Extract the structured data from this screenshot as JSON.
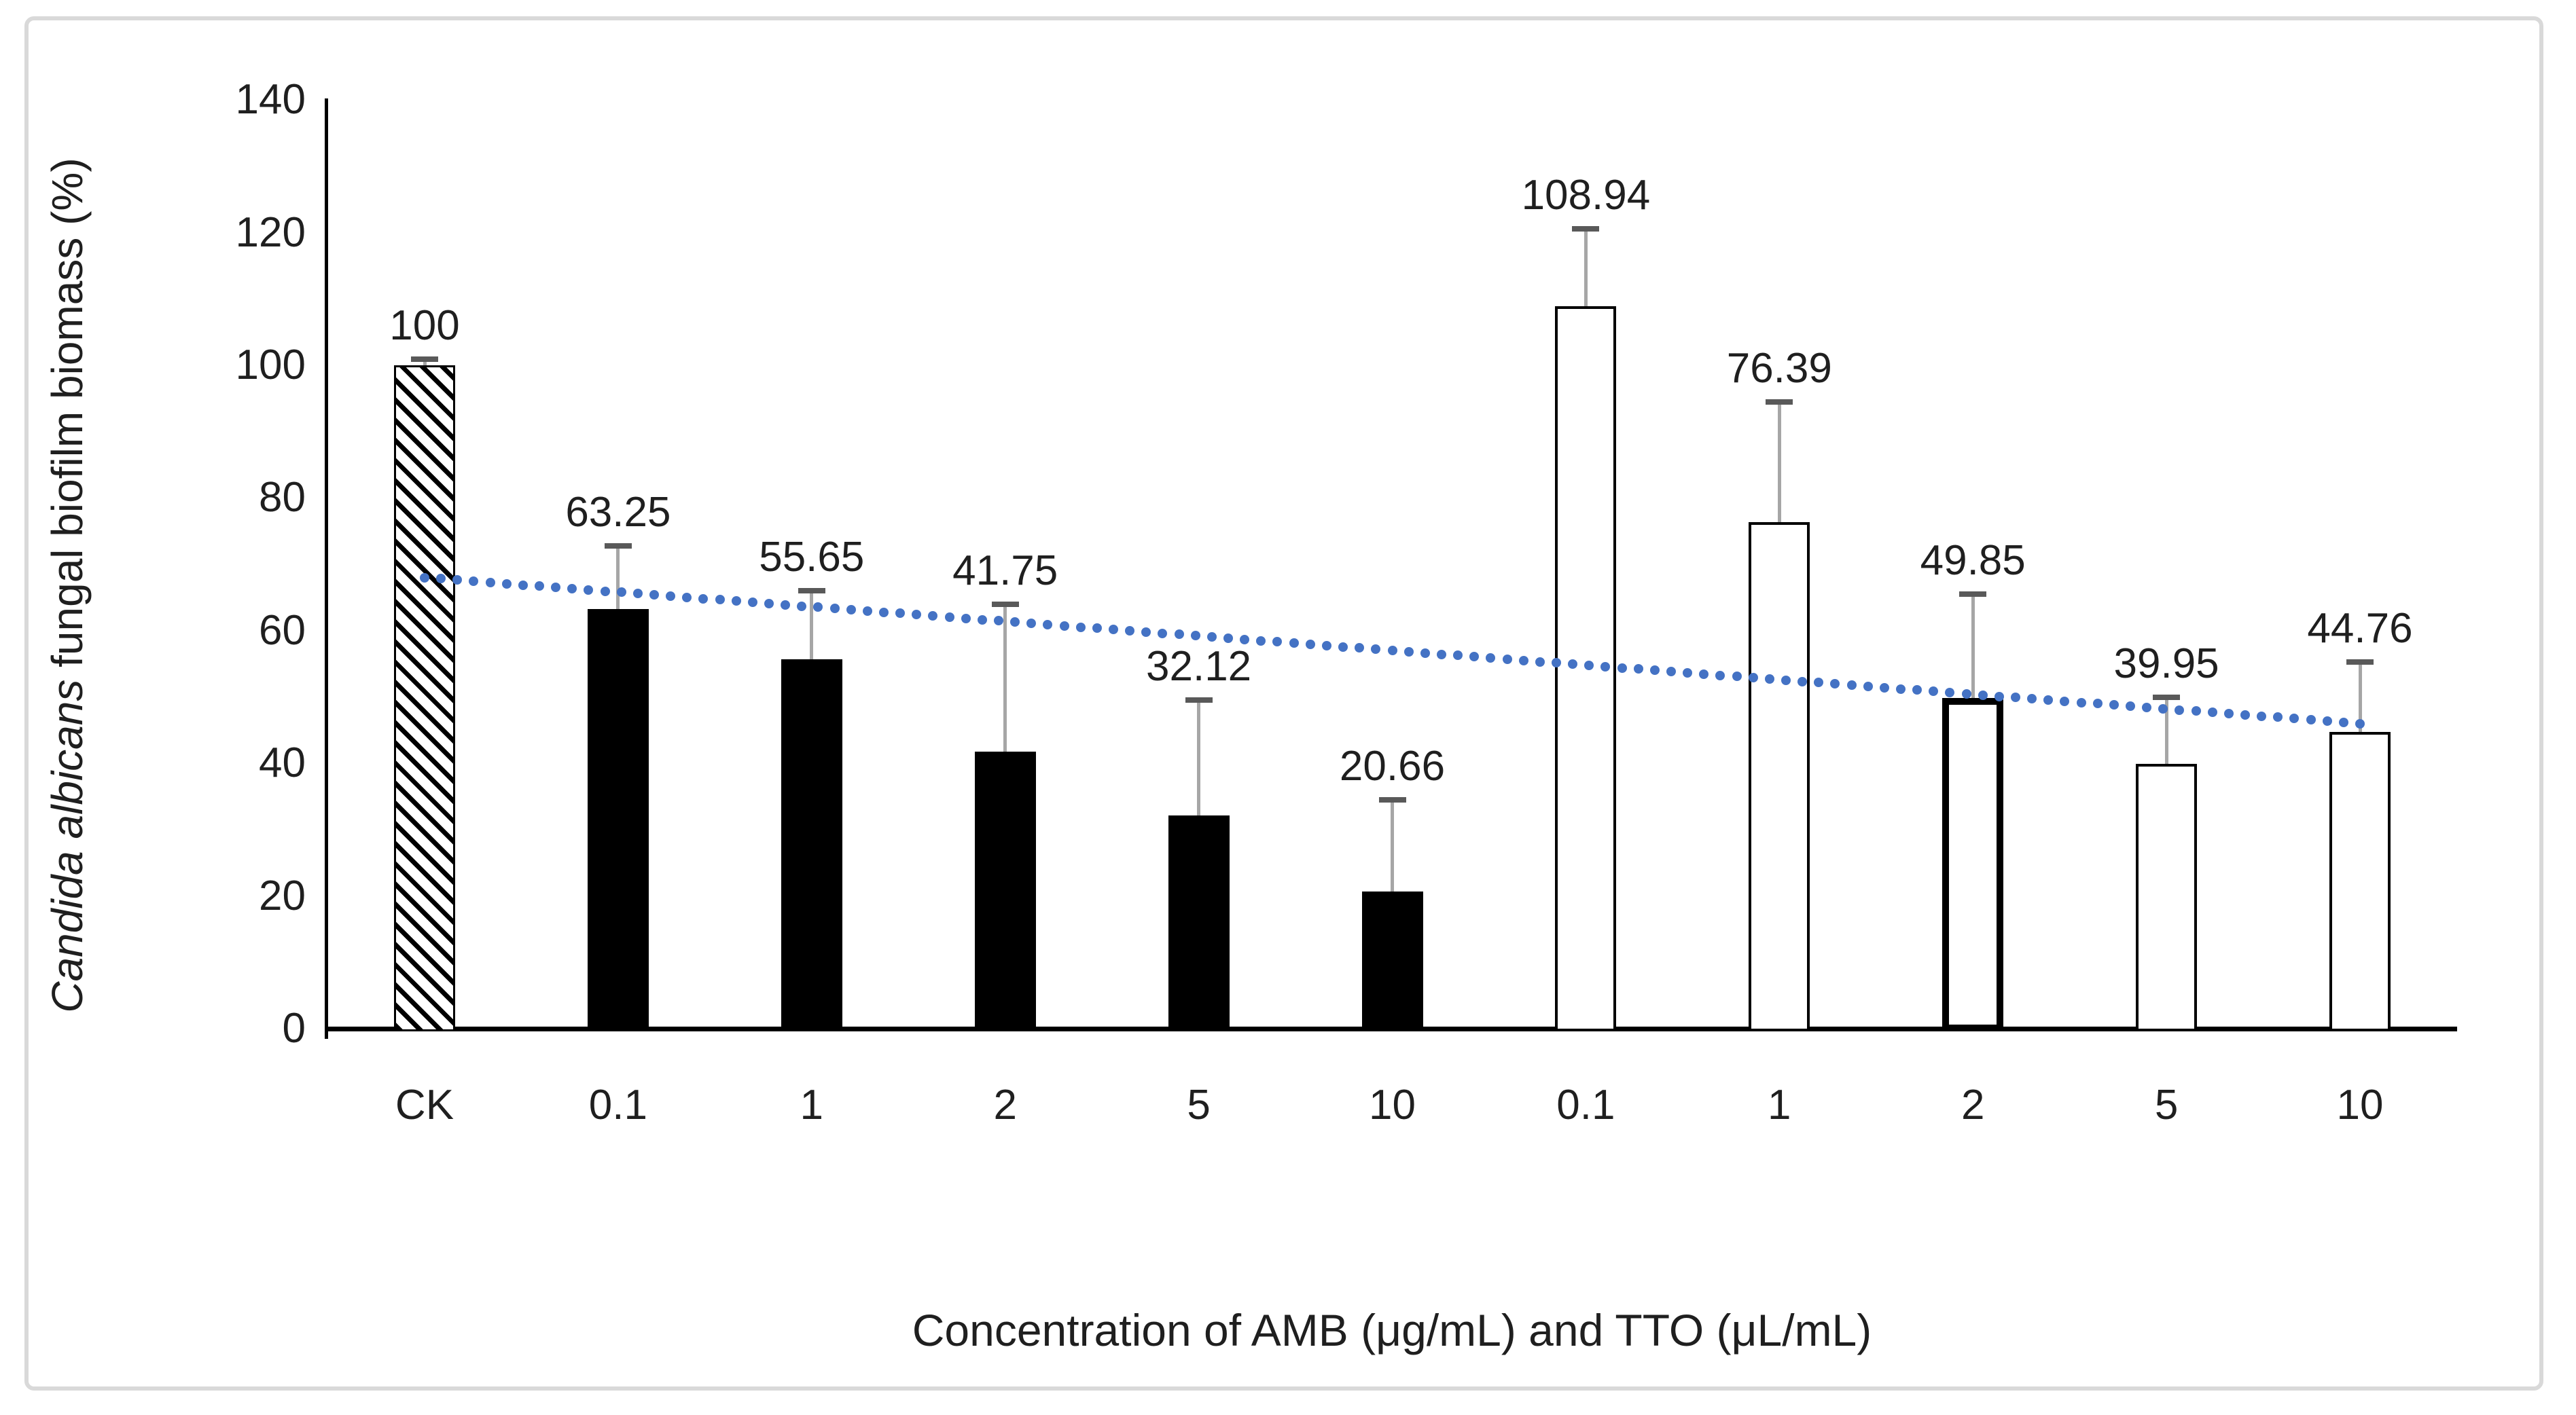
{
  "axes": {
    "x_title": "Concentration of AMB (μg/mL) and TTO (μL/mL)",
    "y_title_italic": "Candida albicans",
    "y_title_rest": " fungal biofilm biomass (%)"
  },
  "chart_data": {
    "type": "bar",
    "title": "",
    "xlabel": "Concentration of AMB (μg/mL) and TTO (μL/mL)",
    "ylabel": "Candida albicans fungal biofilm biomass (%)",
    "ylim": [
      0,
      140
    ],
    "yticks": [
      0,
      20,
      40,
      60,
      80,
      100,
      120,
      140
    ],
    "grid": false,
    "legend": "none",
    "categories": [
      "CK",
      "0.1",
      "1",
      "2",
      "5",
      "10",
      "0.1",
      "1",
      "2",
      "5",
      "10"
    ],
    "values": [
      100,
      63.25,
      55.65,
      41.75,
      32.12,
      20.66,
      108.94,
      76.39,
      49.85,
      39.95,
      44.76
    ],
    "points": [
      {
        "category": "CK",
        "group": "control",
        "value": 100,
        "label": "100",
        "error_top": 100.9,
        "style": "hatched"
      },
      {
        "category": "0.1",
        "group": "AMB",
        "value": 63.25,
        "label": "63.25",
        "error_top": 72.8,
        "style": "black"
      },
      {
        "category": "1",
        "group": "AMB",
        "value": 55.65,
        "label": "55.65",
        "error_top": 66.0,
        "style": "black"
      },
      {
        "category": "2",
        "group": "AMB",
        "value": 41.75,
        "label": "41.75",
        "error_top": 64.0,
        "style": "black"
      },
      {
        "category": "5",
        "group": "AMB",
        "value": 32.12,
        "label": "32.12",
        "error_top": 49.5,
        "style": "black"
      },
      {
        "category": "10",
        "group": "AMB",
        "value": 20.66,
        "label": "20.66",
        "error_top": 34.5,
        "style": "black"
      },
      {
        "category": "0.1",
        "group": "TTO",
        "value": 108.94,
        "label": "108.94",
        "error_top": 120.6,
        "style": "white"
      },
      {
        "category": "1",
        "group": "TTO",
        "value": 76.39,
        "label": "76.39",
        "error_top": 94.5,
        "style": "white"
      },
      {
        "category": "2",
        "group": "TTO",
        "value": 49.85,
        "label": "49.85",
        "error_top": 65.5,
        "style": "white-bold"
      },
      {
        "category": "5",
        "group": "TTO",
        "value": 39.95,
        "label": "39.95",
        "error_top": 50.0,
        "style": "white"
      },
      {
        "category": "10",
        "group": "TTO",
        "value": 44.76,
        "label": "44.76",
        "error_top": 55.3,
        "style": "white"
      }
    ],
    "trendline": {
      "start_value": 68,
      "end_value": 46,
      "style": "dotted",
      "color": "#4472c4"
    },
    "colors": {
      "bar_solid": "#000000",
      "bar_outline": "#000000",
      "error_stem": "#a6a6a6",
      "error_cap": "#595959",
      "trend": "#4472c4",
      "text": "#1f1f1f",
      "chart_border": "#d9d9d9"
    }
  }
}
